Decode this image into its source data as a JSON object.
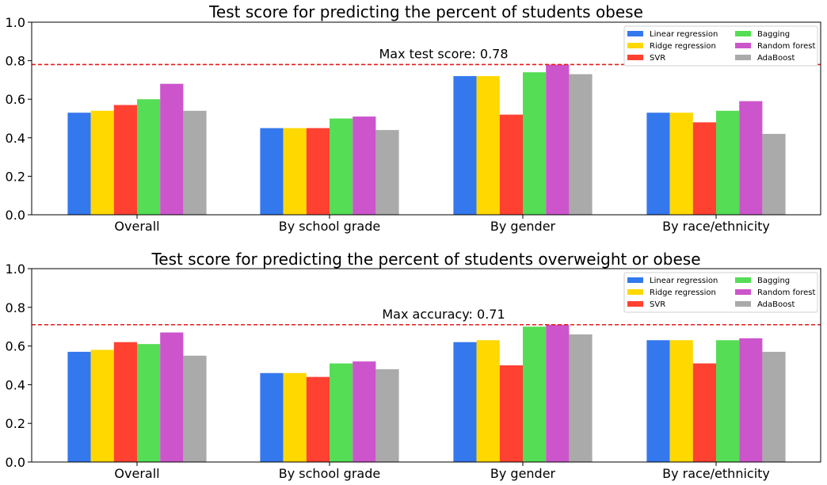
{
  "colors": {
    "Linear regression": "#3478ed",
    "Ridge regression": "#ffd800",
    "SVR": "#ff4132",
    "Bagging": "#55dd55",
    "Random forest": "#cc55cc",
    "AdaBoost": "#aaaaaa",
    "max_line": "#e8191a"
  },
  "chart_data": [
    {
      "type": "bar",
      "title": "Test score for predicting the percent of students obese",
      "categories": [
        "Overall",
        "By school grade",
        "By gender",
        "By race/ethnicity"
      ],
      "series": [
        {
          "name": "Linear regression",
          "values": [
            0.53,
            0.45,
            0.72,
            0.53
          ]
        },
        {
          "name": "Ridge regression",
          "values": [
            0.54,
            0.45,
            0.72,
            0.53
          ]
        },
        {
          "name": "SVR",
          "values": [
            0.57,
            0.45,
            0.52,
            0.48
          ]
        },
        {
          "name": "Bagging",
          "values": [
            0.6,
            0.5,
            0.74,
            0.54
          ]
        },
        {
          "name": "Random forest",
          "values": [
            0.68,
            0.51,
            0.78,
            0.59
          ]
        },
        {
          "name": "AdaBoost",
          "values": [
            0.54,
            0.44,
            0.73,
            0.42
          ]
        }
      ],
      "ylim": [
        0,
        1.0
      ],
      "yticks": [
        "0.0",
        "0.2",
        "0.4",
        "0.6",
        "0.8",
        "1.0"
      ],
      "max_line": {
        "value": 0.78,
        "label": "Max test score: 0.78"
      },
      "legend": "top-right"
    },
    {
      "type": "bar",
      "title": "Test score for predicting the percent of students overweight or obese",
      "categories": [
        "Overall",
        "By school grade",
        "By gender",
        "By race/ethnicity"
      ],
      "series": [
        {
          "name": "Linear regression",
          "values": [
            0.57,
            0.46,
            0.62,
            0.63
          ]
        },
        {
          "name": "Ridge regression",
          "values": [
            0.58,
            0.46,
            0.63,
            0.63
          ]
        },
        {
          "name": "SVR",
          "values": [
            0.62,
            0.44,
            0.5,
            0.51
          ]
        },
        {
          "name": "Bagging",
          "values": [
            0.61,
            0.51,
            0.7,
            0.63
          ]
        },
        {
          "name": "Random forest",
          "values": [
            0.67,
            0.52,
            0.71,
            0.64
          ]
        },
        {
          "name": "AdaBoost",
          "values": [
            0.55,
            0.48,
            0.66,
            0.57
          ]
        }
      ],
      "ylim": [
        0,
        1.0
      ],
      "yticks": [
        "0.0",
        "0.2",
        "0.4",
        "0.6",
        "0.8",
        "1.0"
      ],
      "max_line": {
        "value": 0.71,
        "label": "Max accuracy: 0.71"
      },
      "legend": "top-right"
    }
  ]
}
